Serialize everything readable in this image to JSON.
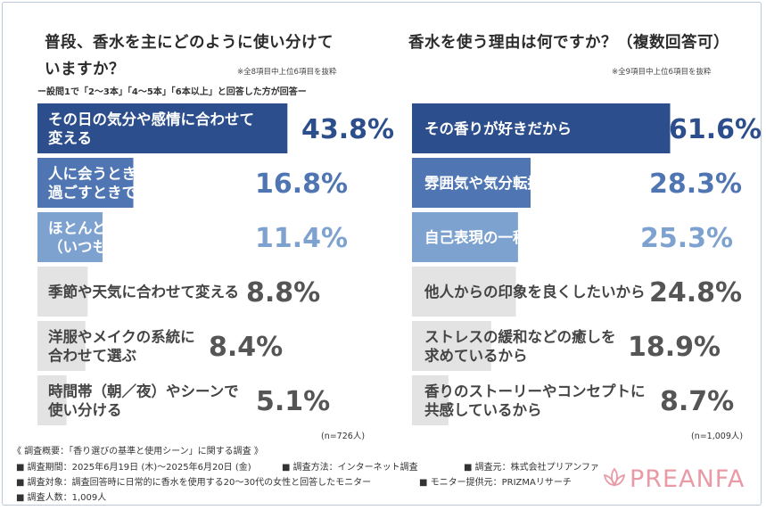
{
  "left_panel": {
    "title_line1": "普段、香水を主にどのように使い分けて",
    "title_line2": "いますか？",
    "note": "※全8項目中上位6項目を抜粋",
    "subnote": "ー設問1で「2〜3本」「4〜5本」「6本以上」と回答した方が回答ー",
    "n_label": "(n=726人)"
  },
  "right_panel": {
    "title": "香水を使う理由は何ですか？（複数回答可）",
    "note": "※全9項目中上位6項目を抜粋",
    "n_label": "(n=1,009人)"
  },
  "colors": {
    "dark": "#2d4e8c",
    "mid": "#4f76b3",
    "light": "#7ea2cf",
    "gray_bar": "#e3e3e3",
    "gray_text": "#444444",
    "frame": "#b9c8d8",
    "logo": "#e89aa6"
  },
  "chart_data": [
    {
      "type": "bar",
      "orientation": "horizontal",
      "title": "普段、香水を主にどのように使い分けていますか？",
      "xlim": [
        0,
        100
      ],
      "categories": [
        [
          "その日の気分や感情に合わせて",
          "変える"
        ],
        [
          "人に会うときと、ひとりで",
          "過ごすときで変える"
        ],
        [
          "ほとんど使い分けていない",
          "（いつも同じ香り）"
        ],
        [
          "季節や天気に合わせて変える"
        ],
        [
          "洋服やメイクの系統に",
          "合わせて選ぶ"
        ],
        [
          "時間帯（朝／夜）やシーンで",
          "使い分ける"
        ]
      ],
      "values": [
        43.8,
        16.8,
        11.4,
        8.8,
        8.4,
        5.1
      ],
      "value_labels": [
        "43.8%",
        "16.8%",
        "11.4%",
        "8.8%",
        "8.4%",
        "5.1%"
      ],
      "tiers": [
        "dark",
        "mid",
        "light",
        "gray",
        "gray",
        "gray"
      ]
    },
    {
      "type": "bar",
      "orientation": "horizontal",
      "title": "香水を使う理由は何ですか？（複数回答可）",
      "xlim": [
        0,
        100
      ],
      "categories": [
        [
          "その香りが好きだから"
        ],
        [
          "雰囲気や気分転換をしたいから"
        ],
        [
          "自己表現の一種だと思うから"
        ],
        [
          "他人からの印象を良くしたいから"
        ],
        [
          "ストレスの緩和などの癒しを",
          "求めているから"
        ],
        [
          "香りのストーリーやコンセプトに",
          "共感しているから"
        ]
      ],
      "values": [
        61.6,
        28.3,
        25.3,
        24.8,
        18.9,
        8.7
      ],
      "value_labels": [
        "61.6%",
        "28.3%",
        "25.3%",
        "24.8%",
        "18.9%",
        "8.7%"
      ],
      "tiers": [
        "dark",
        "mid",
        "light",
        "gray",
        "gray",
        "gray"
      ]
    }
  ],
  "footer": {
    "overview": "《 調査概要：「香り選びの基準と使用シーン」に関する調査 》",
    "period": "■ 調査期間：2025年6月19日 (木)〜2025年6月20日 (金)",
    "method": "■ 調査方法：インターネット調査",
    "source": "■ 調査元：株式会社プリアンファ",
    "target": "■ 調査対象：調査回答時に日常的に香水を使用する20〜30代の女性と回答したモニター",
    "provider": "■ モニター提供元：PRIZMAリサーチ",
    "count": "■ 調査人数：1,009人"
  },
  "logo": {
    "text": "PREANFA",
    "icon": "lotus-icon"
  }
}
